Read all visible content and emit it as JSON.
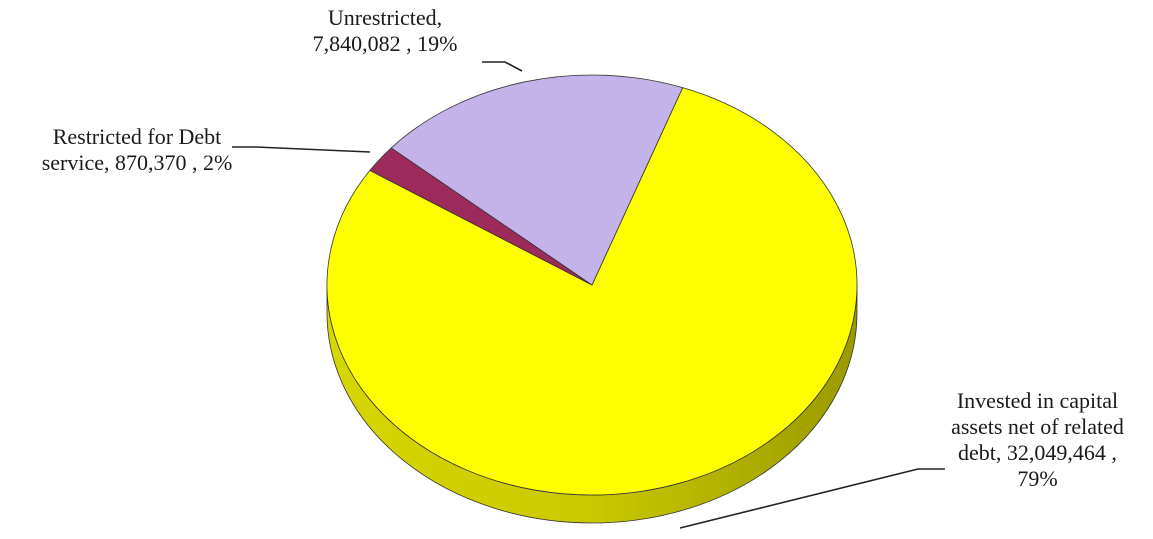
{
  "chart_data": {
    "type": "pie",
    "title": "",
    "slices": [
      {
        "category": "Invested in capital assets net of related debt",
        "value": 32049464,
        "percent": 79,
        "label_lines": [
          "Invested in capital",
          "assets net of related",
          "debt,  32,049,464 ,",
          "79%"
        ],
        "color": "#ffff00",
        "side_color": "#b8b800"
      },
      {
        "category": "Restricted for Debt service",
        "value": 870370,
        "percent": 2,
        "label_lines": [
          "Restricted for Debt",
          "service,  870,370 , 2%"
        ],
        "color": "#9c2a5a",
        "side_color": "#5e1836"
      },
      {
        "category": "Unrestricted",
        "value": 7840082,
        "percent": 19,
        "label_lines": [
          "Unrestricted,",
          "7,840,082 , 19%"
        ],
        "color": "#c4b3e8",
        "side_color": "#8a7bb0"
      }
    ],
    "legend": "none",
    "style": "3d-pie"
  }
}
